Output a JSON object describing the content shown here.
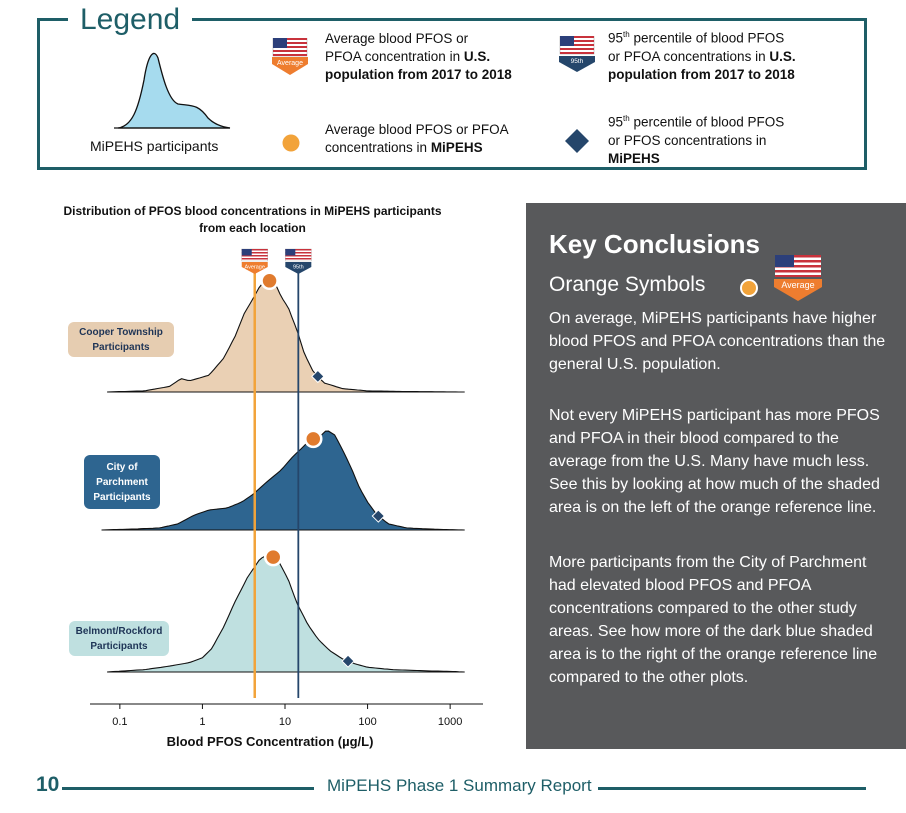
{
  "legend": {
    "title": "Legend",
    "mipehs_label": "MiPEHS participants",
    "us_avg_line1": "Average blood PFOS or",
    "us_avg_line2": "PFOA concentration in ",
    "us_avg_bold2": "U.S.",
    "us_avg_bold3": "population from 2017 to 2018",
    "us_95_sup": "th",
    "us_95_line1a": "95",
    "us_95_line1b": " percentile of blood PFOS",
    "us_95_line2": "or PFOA concentrations in ",
    "us_95_bold2": "U.S.",
    "us_95_bold3": "population from 2017 to 2018",
    "mi_avg_line1": "Average blood PFOS or PFOA",
    "mi_avg_line2": "concentrations in ",
    "mi_avg_bold2": "MiPEHS",
    "mi_95_line1a": "95",
    "mi_95_line1b": " percentile of blood PFOS",
    "mi_95_line2": "or PFOS concentrations in",
    "mi_95_bold3": "MiPEHS",
    "flag_avg_label": "Average",
    "flag_95_label": "95th"
  },
  "chart_data": {
    "type": "ridgeline",
    "title": "Distribution of PFOS blood concentrations in MiPEHS participants from each location",
    "xlabel": "Blood PFOS Concentration (µg/L)",
    "x_scale": "log10",
    "xlim": [
      0.05,
      2500
    ],
    "x_ticks": [
      0.1,
      1,
      10,
      100,
      1000
    ],
    "x_tick_labels": [
      "0.1",
      "1",
      "10",
      "100",
      "1000"
    ],
    "us_average": 4.3,
    "us_95th": 14.5,
    "series": [
      {
        "name": "Cooper Township Participants",
        "color": "#ead0b4",
        "average": 6.5,
        "p95": 25,
        "density": [
          [
            0.07,
            0
          ],
          [
            0.2,
            0.01
          ],
          [
            0.4,
            0.05
          ],
          [
            0.55,
            0.12
          ],
          [
            0.7,
            0.1
          ],
          [
            1.2,
            0.15
          ],
          [
            1.8,
            0.3
          ],
          [
            2.5,
            0.5
          ],
          [
            3.2,
            0.7
          ],
          [
            4,
            0.82
          ],
          [
            5,
            0.95
          ],
          [
            6,
            1.0
          ],
          [
            7.5,
            0.98
          ],
          [
            9,
            0.85
          ],
          [
            11,
            0.75
          ],
          [
            14,
            0.55
          ],
          [
            17,
            0.35
          ],
          [
            22,
            0.18
          ],
          [
            30,
            0.08
          ],
          [
            50,
            0.03
          ],
          [
            100,
            0.01
          ],
          [
            300,
            0.004
          ],
          [
            1500,
            0
          ]
        ]
      },
      {
        "name": "City of Parchment Participants",
        "color": "#2e6590",
        "average": 22,
        "p95": 135,
        "density": [
          [
            0.06,
            0
          ],
          [
            0.15,
            0.01
          ],
          [
            0.3,
            0.02
          ],
          [
            0.5,
            0.06
          ],
          [
            0.8,
            0.15
          ],
          [
            1.2,
            0.2
          ],
          [
            2,
            0.22
          ],
          [
            3,
            0.28
          ],
          [
            4,
            0.35
          ],
          [
            6,
            0.48
          ],
          [
            9,
            0.6
          ],
          [
            12,
            0.72
          ],
          [
            16,
            0.82
          ],
          [
            20,
            0.9
          ],
          [
            26,
            0.93
          ],
          [
            32,
            1.0
          ],
          [
            40,
            0.95
          ],
          [
            50,
            0.8
          ],
          [
            65,
            0.6
          ],
          [
            80,
            0.42
          ],
          [
            100,
            0.28
          ],
          [
            130,
            0.15
          ],
          [
            180,
            0.06
          ],
          [
            300,
            0.02
          ],
          [
            800,
            0.005
          ],
          [
            1500,
            0
          ]
        ]
      },
      {
        "name": "Belmont/Rockford Participants",
        "color": "#bfe0e0",
        "average": 7.2,
        "p95": 58,
        "density": [
          [
            0.07,
            0
          ],
          [
            0.2,
            0.02
          ],
          [
            0.4,
            0.05
          ],
          [
            0.7,
            0.08
          ],
          [
            1,
            0.12
          ],
          [
            1.3,
            0.2
          ],
          [
            1.8,
            0.38
          ],
          [
            2.5,
            0.6
          ],
          [
            3.5,
            0.8
          ],
          [
            5,
            0.96
          ],
          [
            6.5,
            1.0
          ],
          [
            8.5,
            0.93
          ],
          [
            11,
            0.78
          ],
          [
            14,
            0.58
          ],
          [
            19,
            0.4
          ],
          [
            25,
            0.28
          ],
          [
            35,
            0.18
          ],
          [
            50,
            0.11
          ],
          [
            70,
            0.07
          ],
          [
            100,
            0.04
          ],
          [
            200,
            0.02
          ],
          [
            500,
            0.01
          ],
          [
            1000,
            0.005
          ],
          [
            1500,
            0
          ]
        ]
      }
    ]
  },
  "chart_labels": {
    "cooper_1": "Cooper Township",
    "cooper_2": "Participants",
    "parch_1": "City of",
    "parch_2": "Parchment",
    "parch_3": "Participants",
    "belmont_1": "Belmont/Rockford",
    "belmont_2": "Participants"
  },
  "key_conclusions": {
    "title": "Key Conclusions",
    "subtitle": "Orange Symbols",
    "flag_label": "Average",
    "para1": "On average, MiPEHS participants have higher blood PFOS and PFOA concentrations than the general U.S. population.",
    "para2": "Not every MiPEHS participant has more PFOS and PFOA in their blood compared to the average from the U.S. Many have much less. See this by looking at how much of the shaded area is on the left of the orange reference line.",
    "para3": "More participants from the City of Parchment had elevated blood PFOS and PFOA concentrations compared to the other study areas. See how more of the dark blue shaded area is to the right of the orange reference line compared to the other plots."
  },
  "footer": {
    "page_number": "10",
    "report_title": "MiPEHS Phase 1 Summary Report"
  },
  "colors": {
    "teal": "#1e5e67",
    "orange": "#f2a33a",
    "navy": "#25466b",
    "panel": "#58595b",
    "dot_orange": "#e07b2e"
  }
}
